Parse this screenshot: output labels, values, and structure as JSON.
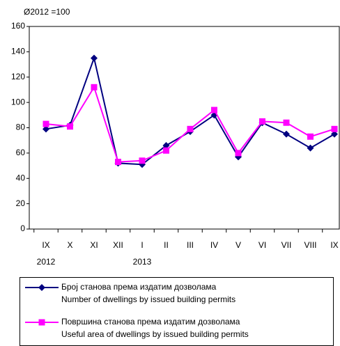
{
  "chart_data": {
    "type": "line",
    "subtitle": "Ø2012 =100",
    "categories": [
      "IX",
      "X",
      "XI",
      "XII",
      "I",
      "II",
      "III",
      "IV",
      "V",
      "VI",
      "VII",
      "VIII",
      "IX"
    ],
    "years": [
      "2012",
      null,
      null,
      null,
      "2013",
      null,
      null,
      null,
      null,
      null,
      null,
      null,
      null
    ],
    "series": [
      {
        "name": [
          "Број станова према издатим дозволама",
          "Number of dwellings by issued building permits"
        ],
        "color": "#000080",
        "marker": "diamond",
        "values": [
          79,
          82,
          135,
          52,
          51,
          66,
          77,
          90,
          57,
          84,
          75,
          64,
          75
        ]
      },
      {
        "name": [
          "Површина станова према издатим дозволама",
          "Useful area of dwellings by issued building permits"
        ],
        "color": "#ff00ff",
        "marker": "square",
        "values": [
          83,
          81,
          112,
          53,
          54,
          62,
          79,
          94,
          60,
          85,
          84,
          73,
          79
        ]
      }
    ],
    "ylim": [
      0,
      160
    ],
    "yticks": [
      0,
      20,
      40,
      60,
      80,
      100,
      120,
      140,
      160
    ],
    "grid": false,
    "legend": "bottom"
  }
}
